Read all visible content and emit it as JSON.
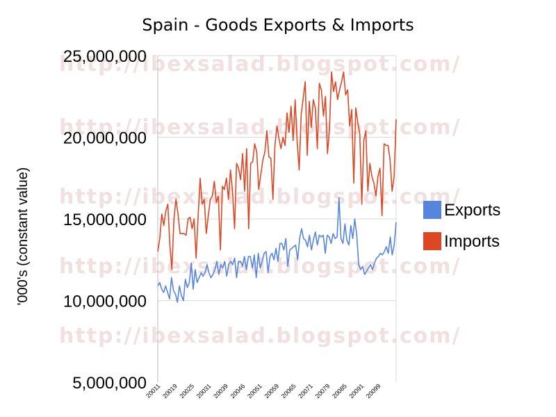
{
  "watermark_text": "http://ibexsalad.blogspot.com/",
  "chart_data": {
    "type": "line",
    "title": "Spain - Goods Exports & Imports",
    "ylabel": "'000's (constant value)",
    "ylim": [
      5000000,
      25000000
    ],
    "y_ticks": [
      "25,000,000",
      "20,000,000",
      "15,000,000",
      "10,000,000",
      "5,000,000"
    ],
    "y_tick_values": [
      25000000,
      20000000,
      15000000,
      10000000,
      5000000
    ],
    "x_tick_labels": [
      "20011",
      "20019",
      "20025",
      "20031",
      "20039",
      "20046",
      "20051",
      "20059",
      "20065",
      "20071",
      "20079",
      "20085",
      "20091",
      "20099"
    ],
    "legend_position": "right",
    "grid": true,
    "series": [
      {
        "name": "Exports",
        "color": "#5585df",
        "values": [
          10900000,
          11200000,
          10800000,
          10500000,
          11000000,
          10800000,
          10300000,
          11500000,
          10800000,
          10700000,
          9900000,
          11200000,
          10500000,
          9900000,
          11500000,
          11000000,
          11200000,
          12500000,
          10800000,
          11900000,
          11200000,
          11300000,
          11700000,
          11500000,
          11600000,
          12200000,
          11800000,
          11500000,
          11700000,
          11900000,
          12400000,
          11800000,
          12200000,
          12000000,
          12400000,
          11700000,
          12100000,
          12500000,
          12200000,
          12600000,
          11500000,
          12400000,
          12400000,
          12200000,
          12800000,
          12000000,
          12700000,
          12600000,
          12100000,
          12800000,
          11500000,
          12900000,
          12000000,
          12400000,
          12900000,
          13000000,
          11800000,
          12700000,
          12900000,
          12500000,
          13300000,
          12400000,
          13500000,
          13500000,
          13100000,
          13700000,
          12200000,
          13100000,
          13200000,
          13300000,
          13400000,
          12500000,
          13800000,
          14400000,
          13800000,
          13700000,
          13300000,
          14000000,
          13100000,
          13700000,
          14200000,
          13400000,
          14000000,
          13900000,
          14000000,
          12900000,
          14000000,
          13900000,
          13500000,
          14100000,
          13800000,
          13900000,
          16300000,
          13800000,
          13500000,
          14700000,
          13700000,
          13400000,
          14600000,
          13800000,
          15000000,
          14000000,
          12200000,
          11900000,
          12100000,
          11600000,
          11800000,
          12000000,
          12200000,
          11900000,
          12300000,
          12600000,
          12700000,
          12900000,
          12800000,
          13000000,
          13300000,
          12900000,
          13900000,
          12800000,
          13400000,
          14800000
        ],
        "display_values": [
          10900000,
          11100000,
          10700000,
          10500000,
          10900000,
          10500000,
          10100000,
          11400000,
          10600000,
          10400000,
          9900000,
          10900000,
          10300000,
          10000000,
          11300000,
          10800000,
          11100000,
          12300000,
          10700000,
          11900000,
          11100000,
          11400000,
          11700000,
          11500000,
          11700000,
          12200000,
          11700000,
          11400000,
          11600000,
          11900000,
          12400000,
          11600000,
          12200000,
          12000000,
          12400000,
          11500000,
          12200000,
          12400000,
          12200000,
          12600000,
          11400000,
          12400000,
          12400000,
          12100000,
          12700000,
          11900000,
          12700000,
          12700000,
          12000000,
          12800000,
          11400000,
          12900000,
          12000000,
          12400000,
          12900000,
          13000000,
          11700000,
          12700000,
          12900000,
          12500000,
          13200000,
          12400000,
          13500000,
          13500000,
          13100000,
          13800000,
          12100000,
          13100000,
          13200000,
          13300000,
          13400000,
          12500000,
          13800000,
          14400000,
          13800000,
          13700000,
          13300000,
          14000000,
          13100000,
          13700000,
          14200000,
          13400000,
          14000000,
          13900000,
          14000000,
          12900000,
          14000000,
          13900000,
          13500000,
          14100000,
          13800000,
          13900000,
          16300000,
          13800000,
          13500000,
          14700000,
          13700000,
          13400000,
          14600000,
          13800000,
          15000000,
          14000000,
          12200000,
          11900000,
          12100000,
          11600000,
          11800000,
          12000000,
          12200000,
          11900000,
          12300000,
          12600000,
          12700000,
          12900000,
          12800000,
          13000000,
          13300000,
          12900000,
          13900000,
          12800000,
          13400000,
          14800000
        ]
      },
      {
        "name": "Imports",
        "color": "#dc4824",
        "values": [
          13000000,
          13800000,
          15300000,
          14600000,
          15500000,
          15900000,
          13400000,
          11900000,
          15000000,
          16200000,
          15300000,
          14100000,
          14100000,
          14100000,
          14000000,
          15000000,
          15100000,
          14400000,
          15000000,
          12600000,
          15200000,
          17500000,
          15900000,
          16200000,
          14100000,
          15200000,
          16200000,
          16400000,
          17300000,
          16000000,
          16400000,
          13100000,
          17000000,
          16800000,
          17500000,
          16200000,
          18000000,
          16700000,
          14400000,
          18400000,
          18100000,
          17400000,
          19000000,
          16700000,
          19300000,
          14400000,
          18400000,
          18500000,
          19600000,
          19100000,
          16800000,
          17700000,
          18600000,
          19100000,
          20400000,
          18800000,
          18700000,
          16200000,
          19500000,
          20700000,
          19900000,
          19300000,
          20000000,
          19500000,
          21500000,
          20300000,
          21900000,
          19800000,
          22300000,
          19700000,
          18000000,
          21400000,
          22400000,
          23400000,
          18900000,
          22200000,
          20600000,
          22300000,
          21800000,
          19300000,
          23300000,
          22900000,
          21300000,
          22500000,
          19000000,
          20500000,
          24000000,
          22800000,
          23400000,
          22300000,
          22900000,
          23400000,
          24000000,
          22600000,
          22900000,
          20700000,
          21700000,
          17200000,
          21800000,
          20900000,
          20200000,
          15900000,
          19800000,
          20400000,
          16700000,
          18400000,
          17600000,
          17200000,
          16400000,
          17600000,
          18100000,
          15200000,
          19600000,
          19500000,
          19500000,
          18600000,
          16700000,
          17600000,
          21100000
        ],
        "display_values": [
          13000000,
          13800000,
          15300000,
          14600000,
          15500000,
          15900000,
          13400000,
          11900000,
          15000000,
          16200000,
          15300000,
          14100000,
          14100000,
          14100000,
          14000000,
          15000000,
          15100000,
          14400000,
          15000000,
          12600000,
          15200000,
          17500000,
          15900000,
          16200000,
          14100000,
          15200000,
          16200000,
          16400000,
          17300000,
          16000000,
          16400000,
          13100000,
          17000000,
          16800000,
          17500000,
          16200000,
          18000000,
          16700000,
          14400000,
          18400000,
          18100000,
          17400000,
          19000000,
          16700000,
          19300000,
          14400000,
          18400000,
          18500000,
          19600000,
          19100000,
          16800000,
          17700000,
          18600000,
          19100000,
          20400000,
          18800000,
          18700000,
          16200000,
          19500000,
          20700000,
          19900000,
          19300000,
          20000000,
          19500000,
          21500000,
          20300000,
          21900000,
          19800000,
          22300000,
          19700000,
          18000000,
          21400000,
          22400000,
          23400000,
          18900000,
          22200000,
          20600000,
          22300000,
          21800000,
          19300000,
          23300000,
          22900000,
          21300000,
          22500000,
          19000000,
          20500000,
          24000000,
          22800000,
          23400000,
          22300000,
          22900000,
          23400000,
          24000000,
          22600000,
          22900000,
          20700000,
          21700000,
          17200000,
          21800000,
          20900000,
          20200000,
          15900000,
          19800000,
          20400000,
          16700000,
          18400000,
          17600000,
          17200000,
          16400000,
          17600000,
          18100000,
          15200000,
          19600000,
          19500000,
          19500000,
          18600000,
          16700000,
          17600000,
          21100000
        ]
      }
    ]
  }
}
